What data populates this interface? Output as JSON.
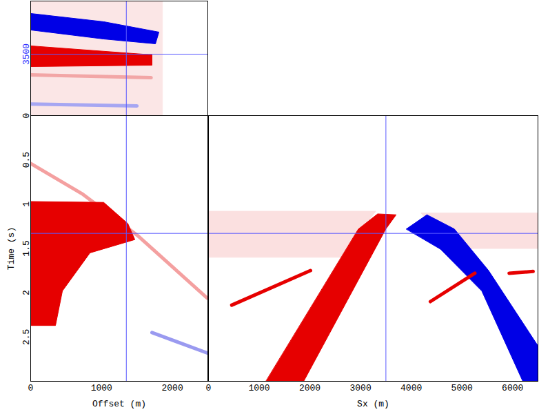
{
  "chart_data": [
    {
      "type": "seismic",
      "x_label": null,
      "y_label": null,
      "xlim": [
        0,
        2500
      ],
      "ylim": [
        2170,
        4650
      ],
      "xticks": [],
      "yticks": [
        3500
      ],
      "tick_labels": "y",
      "crosshair": {
        "x": 1350,
        "y": 3500
      },
      "events": [
        {
          "type": "area",
          "color": "#fbe6e6",
          "points": [
            [
              0,
              2170
            ],
            [
              1860,
              2170
            ],
            [
              1860,
              4650
            ],
            [
              0,
              4650
            ]
          ]
        },
        {
          "type": "area",
          "color": "#0000e6",
          "points": [
            [
              0,
              4381
            ],
            [
              1031,
              4202
            ],
            [
              1810,
              3978
            ],
            [
              1761,
              3724
            ],
            [
              1031,
              3828
            ],
            [
              0,
              4023
            ]
          ]
        },
        {
          "type": "area",
          "color": "#e60000",
          "points": [
            [
              0,
              3679
            ],
            [
              1712,
              3485
            ],
            [
              1712,
              3261
            ],
            [
              0,
              3231
            ]
          ]
        },
        {
          "type": "line",
          "color": "#f2a6a6",
          "points": [
            [
              0,
              3050
            ],
            [
              1700,
              2990
            ]
          ]
        },
        {
          "type": "line",
          "color": "#a6a6f2",
          "points": [
            [
              0,
              2420
            ],
            [
              1500,
              2380
            ]
          ]
        }
      ]
    },
    {
      "type": "seismic",
      "x_label": "Offset (m)",
      "y_label": "Time (s)",
      "xlim": [
        0,
        2500
      ],
      "ylim": [
        0,
        3
      ],
      "xticks": [
        0,
        1000,
        2000
      ],
      "yticks": [
        0,
        0.5,
        1,
        1.5,
        2,
        2.5
      ],
      "crosshair": {
        "x": 1350,
        "y": 1.33
      },
      "events": [
        {
          "type": "line",
          "color": "#f4a0a0",
          "points": [
            [
              0,
              0.54
            ],
            [
              739,
              0.89
            ],
            [
              1518,
              1.36
            ],
            [
              2491,
              2.06
            ]
          ]
        },
        {
          "type": "area",
          "color": "#e60000",
          "points": [
            [
              0,
              0.97
            ],
            [
              1031,
              0.98
            ],
            [
              1372,
              1.22
            ],
            [
              1470,
              1.4
            ],
            [
              837,
              1.55
            ],
            [
              448,
              1.98
            ],
            [
              350,
              2.37
            ],
            [
              0,
              2.37
            ]
          ]
        },
        {
          "type": "line",
          "color": "#9a9af0",
          "points": [
            [
              1712,
              2.45
            ],
            [
              2491,
              2.68
            ]
          ]
        }
      ]
    },
    {
      "type": "seismic",
      "x_label": "Sx (m)",
      "y_label": null,
      "xlim": [
        0,
        6500
      ],
      "ylim": [
        0,
        3
      ],
      "xticks": [
        0,
        1000,
        2000,
        3000,
        4000,
        5000,
        6000
      ],
      "yticks": [],
      "tick_labels": "x",
      "crosshair": {
        "x": 3500,
        "y": 1.33
      },
      "events": [
        {
          "type": "area",
          "color": "#fbe0e0",
          "points": [
            [
              0,
              1.08
            ],
            [
              3300,
              1.08
            ],
            [
              2600,
              1.6
            ],
            [
              0,
              1.6
            ]
          ]
        },
        {
          "type": "area",
          "color": "#fbe0e0",
          "points": [
            [
              4200,
              1.1
            ],
            [
              6500,
              1.1
            ],
            [
              6500,
              1.5
            ],
            [
              4800,
              1.5
            ]
          ]
        },
        {
          "type": "line",
          "color": "#e60000",
          "points": [
            [
              459,
              2.14
            ],
            [
              2013,
              1.75
            ]
          ]
        },
        {
          "type": "area",
          "color": "#e60000",
          "points": [
            [
              1135,
              3.0
            ],
            [
              1878,
              3.0
            ],
            [
              3499,
              1.28
            ],
            [
              3702,
              1.12
            ],
            [
              3337,
              1.11
            ],
            [
              2959,
              1.28
            ]
          ]
        },
        {
          "type": "area",
          "color": "#0000e6",
          "points": [
            [
              3904,
              1.28
            ],
            [
              4310,
              1.12
            ],
            [
              4850,
              1.28
            ],
            [
              5526,
              1.75
            ],
            [
              6500,
              2.6
            ],
            [
              6500,
              3.0
            ],
            [
              6201,
              3.0
            ],
            [
              5391,
              1.98
            ],
            [
              4580,
              1.51
            ]
          ]
        },
        {
          "type": "line",
          "color": "#e60000",
          "points": [
            [
              4377,
              2.1
            ],
            [
              5255,
              1.78
            ]
          ]
        },
        {
          "type": "line",
          "color": "#e60000",
          "points": [
            [
              5931,
              1.78
            ],
            [
              6404,
              1.76
            ]
          ]
        }
      ]
    }
  ]
}
